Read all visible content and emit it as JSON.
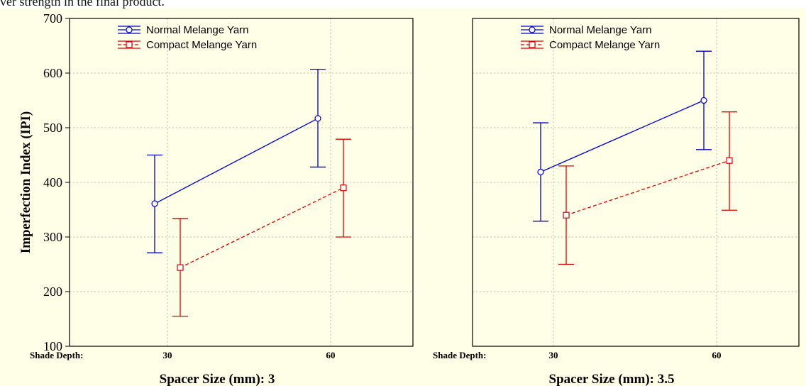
{
  "caption": "ver strength in the final product.",
  "colors": {
    "background": "#ffffe8",
    "normal": "#0000cc",
    "compact": "#dd0000",
    "grid": "#b8b8b8"
  },
  "chart_data": [
    {
      "type": "line",
      "panel": "left",
      "title": "",
      "xlabel": "Spacer Size (mm): 3",
      "ylabel": "Imperfection Index (IPI)",
      "x_axis_name": "Shade Depth:",
      "categories": [
        "30",
        "60"
      ],
      "ylim": [
        100,
        700
      ],
      "yticks": [
        100,
        200,
        300,
        400,
        500,
        600,
        700
      ],
      "grid": true,
      "legend_placement": "top-left",
      "error_bars": true,
      "series": [
        {
          "name": "Normal Melange Yarn",
          "marker": "circle",
          "line_style": "solid",
          "color": "#0000cc",
          "values": [
            361,
            517
          ],
          "lower": [
            271,
            428
          ],
          "upper": [
            450,
            607
          ]
        },
        {
          "name": "Compact Melange Yarn",
          "marker": "square",
          "line_style": "dashed",
          "color": "#dd0000",
          "values": [
            244,
            390
          ],
          "lower": [
            155,
            300
          ],
          "upper": [
            334,
            479
          ]
        }
      ]
    },
    {
      "type": "line",
      "panel": "right",
      "title": "",
      "xlabel": "Spacer Size (mm): 3.5",
      "ylabel": "",
      "x_axis_name": "Shade Depth:",
      "categories": [
        "30",
        "60"
      ],
      "ylim": [
        100,
        700
      ],
      "yticks": [
        100,
        200,
        300,
        400,
        500,
        600,
        700
      ],
      "grid": true,
      "legend_placement": "top-left",
      "error_bars": true,
      "series": [
        {
          "name": "Normal Melange Yarn",
          "marker": "circle",
          "line_style": "solid",
          "color": "#0000cc",
          "values": [
            419,
            550
          ],
          "lower": [
            329,
            460
          ],
          "upper": [
            509,
            640
          ]
        },
        {
          "name": "Compact Melange Yarn",
          "marker": "square",
          "line_style": "dashed",
          "color": "#dd0000",
          "values": [
            340,
            440
          ],
          "lower": [
            250,
            349
          ],
          "upper": [
            430,
            529
          ]
        }
      ]
    }
  ]
}
